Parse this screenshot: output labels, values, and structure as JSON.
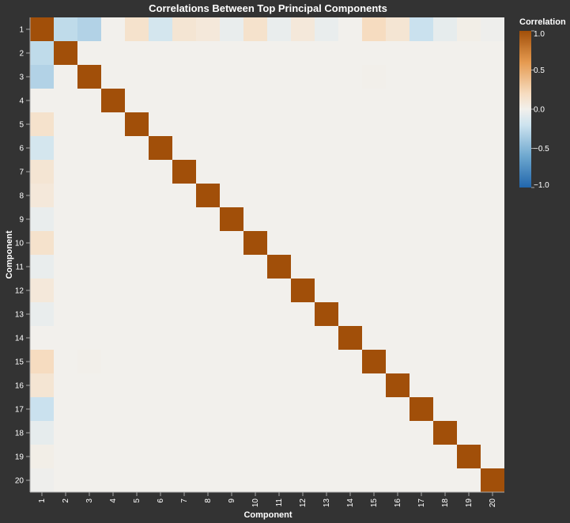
{
  "chart_data": {
    "type": "heatmap",
    "title": "Correlations Between Top Principal Components",
    "xlabel": "Component",
    "ylabel": "Component",
    "categories": [
      "1",
      "2",
      "3",
      "4",
      "5",
      "6",
      "7",
      "8",
      "9",
      "10",
      "11",
      "12",
      "13",
      "14",
      "15",
      "16",
      "17",
      "18",
      "19",
      "20"
    ],
    "diagonal_value": 1.0,
    "off_diagonal_default": 0.0,
    "first_component_correlations": [
      1.0,
      -0.3,
      -0.35,
      0.0,
      0.18,
      -0.2,
      0.14,
      0.1,
      -0.06,
      0.18,
      -0.06,
      0.1,
      -0.06,
      0.0,
      0.25,
      0.14,
      -0.26,
      -0.08,
      0.03,
      -0.03
    ],
    "other_nonzero": [
      {
        "row": "3",
        "col": "15",
        "value": 0.01
      },
      {
        "row": "15",
        "col": "3",
        "value": 0.01
      }
    ],
    "color_scale": {
      "scheme": "diverging blue-orange",
      "domain": [
        -1.0,
        1.0
      ],
      "low_color": "#2166ac",
      "mid_color": "#f2f0ec",
      "high_color": "#a14f09"
    },
    "legend": {
      "title": "Correlation",
      "position": "right",
      "ticks": [
        {
          "value": 1.0,
          "label": "1.0"
        },
        {
          "value": 0.5,
          "label": "0.5"
        },
        {
          "value": 0.0,
          "label": "0.0"
        },
        {
          "value": -0.5,
          "label": "−0.5"
        },
        {
          "value": -1.0,
          "label": "−1.0"
        }
      ]
    }
  }
}
